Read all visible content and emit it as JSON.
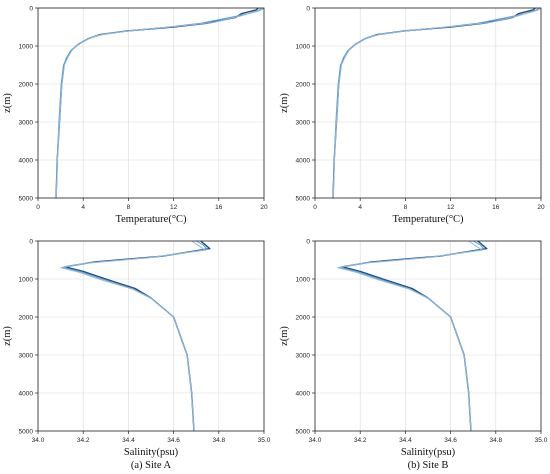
{
  "chart_data": [
    {
      "type": "line",
      "panel": "top-left",
      "xlabel": "Temperature(°C)",
      "ylabel": "z(m)",
      "xlim": [
        0,
        20
      ],
      "ylim": [
        5000,
        0
      ],
      "y_inverted": true,
      "xticks": [
        "0",
        "4",
        "8",
        "12",
        "16",
        "20"
      ],
      "yticks": [
        "0",
        "1000",
        "2000",
        "3000",
        "4000",
        "5000"
      ],
      "grid": true,
      "caption": "",
      "series": [
        {
          "color": "#1f4e79",
          "points": [
            [
              19.5,
              0
            ],
            [
              19.3,
              50
            ],
            [
              18.0,
              150
            ],
            [
              17.5,
              250
            ],
            [
              15.0,
              400
            ],
            [
              12.0,
              500
            ],
            [
              8.0,
              600
            ],
            [
              5.5,
              700
            ],
            [
              4.5,
              800
            ],
            [
              3.6,
              950
            ],
            [
              3.0,
              1100
            ],
            [
              2.6,
              1300
            ],
            [
              2.3,
              1500
            ],
            [
              2.1,
              2000
            ],
            [
              1.9,
              3000
            ],
            [
              1.7,
              4000
            ],
            [
              1.6,
              5000
            ]
          ]
        },
        {
          "color": "#5b9bd5",
          "points": [
            [
              19.8,
              0
            ],
            [
              19.6,
              50
            ],
            [
              18.6,
              150
            ],
            [
              17.0,
              250
            ],
            [
              14.4,
              400
            ],
            [
              11.6,
              500
            ],
            [
              7.6,
              620
            ],
            [
              5.2,
              720
            ],
            [
              4.3,
              820
            ],
            [
              3.5,
              970
            ],
            [
              2.9,
              1120
            ],
            [
              2.5,
              1320
            ],
            [
              2.25,
              1520
            ],
            [
              2.05,
              2000
            ],
            [
              1.85,
              3000
            ],
            [
              1.7,
              4000
            ],
            [
              1.6,
              5000
            ]
          ]
        },
        {
          "color": "#8fb8de",
          "points": [
            [
              20.0,
              0
            ],
            [
              19.8,
              50
            ],
            [
              19.0,
              120
            ],
            [
              17.8,
              220
            ],
            [
              15.5,
              380
            ],
            [
              12.4,
              480
            ],
            [
              8.4,
              590
            ],
            [
              5.8,
              690
            ],
            [
              4.6,
              790
            ],
            [
              3.7,
              940
            ],
            [
              3.05,
              1090
            ],
            [
              2.65,
              1290
            ],
            [
              2.35,
              1490
            ],
            [
              2.12,
              2000
            ],
            [
              1.9,
              3000
            ],
            [
              1.72,
              4000
            ],
            [
              1.62,
              5000
            ]
          ]
        }
      ]
    },
    {
      "type": "line",
      "panel": "top-right",
      "xlabel": "Temperature(°C)",
      "ylabel": "z(m)",
      "xlim": [
        0,
        20
      ],
      "ylim": [
        5000,
        0
      ],
      "y_inverted": true,
      "xticks": [
        "0",
        "4",
        "8",
        "12",
        "16",
        "20"
      ],
      "yticks": [
        "0",
        "1000",
        "2000",
        "3000",
        "4000",
        "5000"
      ],
      "grid": true,
      "caption": "",
      "series": [
        {
          "color": "#1f4e79",
          "points": [
            [
              19.5,
              0
            ],
            [
              19.3,
              50
            ],
            [
              18.0,
              150
            ],
            [
              17.5,
              250
            ],
            [
              15.0,
              400
            ],
            [
              12.0,
              500
            ],
            [
              8.0,
              600
            ],
            [
              5.5,
              700
            ],
            [
              4.5,
              800
            ],
            [
              3.6,
              950
            ],
            [
              3.0,
              1100
            ],
            [
              2.6,
              1300
            ],
            [
              2.3,
              1500
            ],
            [
              2.1,
              2000
            ],
            [
              1.9,
              3000
            ],
            [
              1.7,
              4000
            ],
            [
              1.6,
              5000
            ]
          ]
        },
        {
          "color": "#5b9bd5",
          "points": [
            [
              19.8,
              0
            ],
            [
              19.6,
              50
            ],
            [
              18.6,
              150
            ],
            [
              17.0,
              250
            ],
            [
              14.4,
              400
            ],
            [
              11.6,
              500
            ],
            [
              7.6,
              620
            ],
            [
              5.2,
              720
            ],
            [
              4.3,
              820
            ],
            [
              3.5,
              970
            ],
            [
              2.9,
              1120
            ],
            [
              2.5,
              1320
            ],
            [
              2.25,
              1520
            ],
            [
              2.05,
              2000
            ],
            [
              1.85,
              3000
            ],
            [
              1.7,
              4000
            ],
            [
              1.6,
              5000
            ]
          ]
        },
        {
          "color": "#8fb8de",
          "points": [
            [
              20.0,
              0
            ],
            [
              19.8,
              50
            ],
            [
              19.0,
              120
            ],
            [
              17.8,
              220
            ],
            [
              15.5,
              380
            ],
            [
              12.4,
              480
            ],
            [
              8.4,
              590
            ],
            [
              5.8,
              690
            ],
            [
              4.6,
              790
            ],
            [
              3.7,
              940
            ],
            [
              3.05,
              1090
            ],
            [
              2.65,
              1290
            ],
            [
              2.35,
              1490
            ],
            [
              2.12,
              2000
            ],
            [
              1.9,
              3000
            ],
            [
              1.72,
              4000
            ],
            [
              1.62,
              5000
            ]
          ]
        }
      ]
    },
    {
      "type": "line",
      "panel": "bottom-left",
      "xlabel": "Salinity(psu)",
      "ylabel": "z(m)",
      "xlim": [
        34.0,
        35.0
      ],
      "ylim": [
        5000,
        0
      ],
      "y_inverted": true,
      "xticks": [
        "34.0",
        "34.2",
        "34.4",
        "34.6",
        "34.8",
        "35.0"
      ],
      "yticks": [
        "0",
        "1000",
        "2000",
        "3000",
        "4000",
        "5000"
      ],
      "grid": true,
      "caption": "(a) Site A",
      "series": [
        {
          "color": "#1f4e79",
          "points": [
            [
              34.72,
              0
            ],
            [
              34.74,
              100
            ],
            [
              34.76,
              200
            ],
            [
              34.55,
              400
            ],
            [
              34.25,
              550
            ],
            [
              34.12,
              680
            ],
            [
              34.2,
              800
            ],
            [
              34.3,
              1000
            ],
            [
              34.43,
              1250
            ],
            [
              34.5,
              1500
            ],
            [
              34.6,
              2000
            ],
            [
              34.66,
              3000
            ],
            [
              34.68,
              4000
            ],
            [
              34.69,
              5000
            ]
          ]
        },
        {
          "color": "#5b9bd5",
          "points": [
            [
              34.7,
              0
            ],
            [
              34.73,
              100
            ],
            [
              34.75,
              220
            ],
            [
              34.52,
              420
            ],
            [
              34.23,
              570
            ],
            [
              34.11,
              690
            ],
            [
              34.19,
              810
            ],
            [
              34.29,
              1010
            ],
            [
              34.42,
              1260
            ],
            [
              34.5,
              1500
            ],
            [
              34.6,
              2000
            ],
            [
              34.66,
              3000
            ],
            [
              34.68,
              4000
            ],
            [
              34.69,
              5000
            ]
          ]
        },
        {
          "color": "#8fb8de",
          "points": [
            [
              34.68,
              0
            ],
            [
              34.71,
              120
            ],
            [
              34.74,
              240
            ],
            [
              34.49,
              440
            ],
            [
              34.21,
              590
            ],
            [
              34.1,
              700
            ],
            [
              34.18,
              820
            ],
            [
              34.28,
              1020
            ],
            [
              34.42,
              1270
            ],
            [
              34.5,
              1510
            ],
            [
              34.6,
              2000
            ],
            [
              34.66,
              3000
            ],
            [
              34.68,
              4000
            ],
            [
              34.69,
              5000
            ]
          ]
        }
      ]
    },
    {
      "type": "line",
      "panel": "bottom-right",
      "xlabel": "Salinity(psu)",
      "ylabel": "z(m)",
      "xlim": [
        34.0,
        35.0
      ],
      "ylim": [
        5000,
        0
      ],
      "y_inverted": true,
      "xticks": [
        "34.0",
        "34.2",
        "34.4",
        "34.6",
        "34.8",
        "35.0"
      ],
      "yticks": [
        "0",
        "1000",
        "2000",
        "3000",
        "4000",
        "5000"
      ],
      "grid": true,
      "caption": "(b) Site B",
      "series": [
        {
          "color": "#1f4e79",
          "points": [
            [
              34.72,
              0
            ],
            [
              34.74,
              100
            ],
            [
              34.76,
              200
            ],
            [
              34.55,
              400
            ],
            [
              34.25,
              550
            ],
            [
              34.12,
              680
            ],
            [
              34.2,
              800
            ],
            [
              34.3,
              1000
            ],
            [
              34.43,
              1250
            ],
            [
              34.5,
              1500
            ],
            [
              34.6,
              2000
            ],
            [
              34.66,
              3000
            ],
            [
              34.68,
              4000
            ],
            [
              34.69,
              5000
            ]
          ]
        },
        {
          "color": "#5b9bd5",
          "points": [
            [
              34.7,
              0
            ],
            [
              34.73,
              100
            ],
            [
              34.75,
              220
            ],
            [
              34.52,
              420
            ],
            [
              34.23,
              570
            ],
            [
              34.11,
              690
            ],
            [
              34.19,
              810
            ],
            [
              34.29,
              1010
            ],
            [
              34.42,
              1260
            ],
            [
              34.5,
              1500
            ],
            [
              34.6,
              2000
            ],
            [
              34.66,
              3000
            ],
            [
              34.68,
              4000
            ],
            [
              34.69,
              5000
            ]
          ]
        },
        {
          "color": "#8fb8de",
          "points": [
            [
              34.68,
              0
            ],
            [
              34.71,
              120
            ],
            [
              34.74,
              240
            ],
            [
              34.49,
              440
            ],
            [
              34.21,
              590
            ],
            [
              34.1,
              700
            ],
            [
              34.18,
              820
            ],
            [
              34.28,
              1020
            ],
            [
              34.42,
              1270
            ],
            [
              34.5,
              1510
            ],
            [
              34.6,
              2000
            ],
            [
              34.66,
              3000
            ],
            [
              34.68,
              4000
            ],
            [
              34.69,
              5000
            ]
          ]
        }
      ]
    }
  ]
}
